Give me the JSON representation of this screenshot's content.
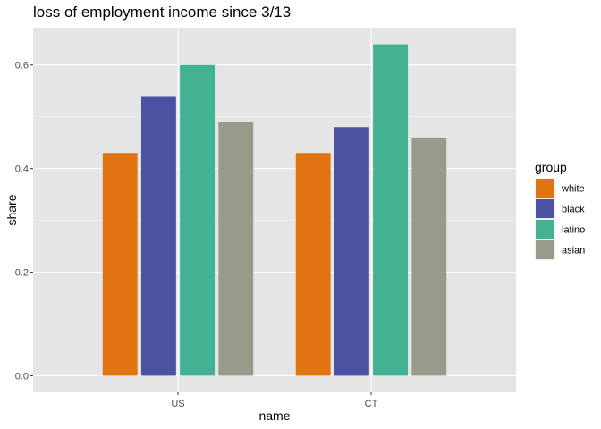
{
  "chart_data": {
    "type": "bar",
    "title": "loss of employment income since 3/13",
    "xlabel": "name",
    "ylabel": "share",
    "categories": [
      "US",
      "CT"
    ],
    "series": [
      {
        "name": "white",
        "values": [
          0.43,
          0.43
        ],
        "color": "#e07511"
      },
      {
        "name": "black",
        "values": [
          0.54,
          0.48
        ],
        "color": "#4c52a2"
      },
      {
        "name": "latino",
        "values": [
          0.6,
          0.64
        ],
        "color": "#43b292"
      },
      {
        "name": "asian",
        "values": [
          0.49,
          0.46
        ],
        "color": "#999b8a"
      }
    ],
    "ylim": [
      -0.032,
      0.672
    ],
    "yticks": [
      0.0,
      0.2,
      0.4,
      0.6
    ],
    "ytick_labels": [
      "0.0",
      "0.2",
      "0.4",
      "0.6"
    ],
    "legend_title": "group",
    "legend_position": "right",
    "grid": true,
    "panel_background": "#e5e5e5"
  }
}
